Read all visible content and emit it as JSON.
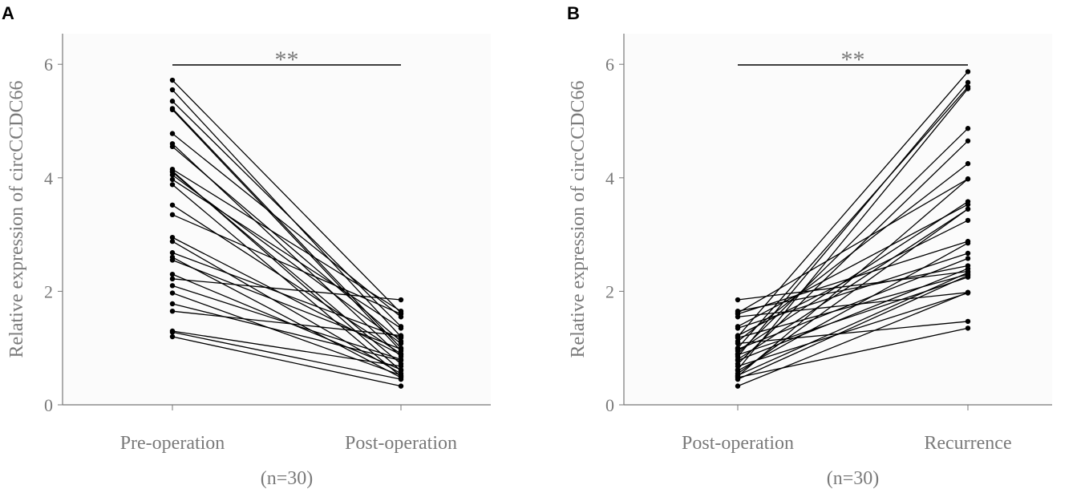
{
  "chart_data": [
    {
      "type": "line",
      "panel_label": "A",
      "categories": [
        "Pre-operation",
        "Post-operation"
      ],
      "sample_note": "(n=30)",
      "ylabel": "Relative expression of circCCDC66",
      "ylim": [
        0,
        6.5
      ],
      "yticks": [
        "0",
        "2",
        "4",
        "6"
      ],
      "significance": "**",
      "pairs": [
        [
          5.72,
          1.62
        ],
        [
          5.55,
          1.2
        ],
        [
          5.35,
          1.38
        ],
        [
          5.22,
          1.0
        ],
        [
          5.2,
          0.95
        ],
        [
          4.78,
          1.55
        ],
        [
          4.6,
          0.85
        ],
        [
          4.55,
          1.12
        ],
        [
          4.15,
          1.65
        ],
        [
          4.12,
          0.6
        ],
        [
          4.1,
          0.72
        ],
        [
          4.05,
          1.08
        ],
        [
          3.97,
          1.35
        ],
        [
          3.88,
          0.5
        ],
        [
          3.52,
          0.9
        ],
        [
          3.35,
          1.6
        ],
        [
          2.95,
          0.88
        ],
        [
          2.88,
          0.55
        ],
        [
          2.68,
          1.18
        ],
        [
          2.6,
          0.48
        ],
        [
          2.55,
          0.98
        ],
        [
          2.3,
          0.62
        ],
        [
          2.22,
          1.85
        ],
        [
          2.1,
          0.8
        ],
        [
          1.97,
          0.52
        ],
        [
          1.78,
          0.78
        ],
        [
          1.65,
          1.22
        ],
        [
          1.3,
          0.68
        ],
        [
          1.28,
          0.45
        ],
        [
          1.2,
          0.33
        ]
      ]
    },
    {
      "type": "line",
      "panel_label": "B",
      "categories": [
        "Post-operation",
        "Recurrence"
      ],
      "sample_note": "(n=30)",
      "ylabel": "Relative expression of circCCDC66",
      "ylim": [
        0,
        6.5
      ],
      "yticks": [
        "0",
        "2",
        "4",
        "6"
      ],
      "significance": "**",
      "pairs": [
        [
          1.85,
          2.35
        ],
        [
          1.65,
          2.45
        ],
        [
          1.62,
          3.98
        ],
        [
          1.6,
          2.88
        ],
        [
          1.55,
          1.98
        ],
        [
          1.38,
          3.53
        ],
        [
          1.35,
          2.67
        ],
        [
          1.22,
          3.25
        ],
        [
          1.2,
          5.87
        ],
        [
          1.18,
          2.3
        ],
        [
          1.12,
          4.25
        ],
        [
          1.08,
          1.47
        ],
        [
          1.0,
          5.6
        ],
        [
          0.98,
          2.58
        ],
        [
          0.95,
          3.58
        ],
        [
          0.9,
          4.87
        ],
        [
          0.88,
          2.25
        ],
        [
          0.85,
          5.68
        ],
        [
          0.8,
          3.45
        ],
        [
          0.78,
          2.4
        ],
        [
          0.72,
          4.65
        ],
        [
          0.68,
          1.97
        ],
        [
          0.62,
          5.57
        ],
        [
          0.6,
          2.85
        ],
        [
          0.55,
          3.45
        ],
        [
          0.52,
          2.33
        ],
        [
          0.5,
          3.98
        ],
        [
          0.48,
          1.35
        ],
        [
          0.45,
          2.28
        ],
        [
          0.33,
          1.98
        ]
      ]
    }
  ]
}
